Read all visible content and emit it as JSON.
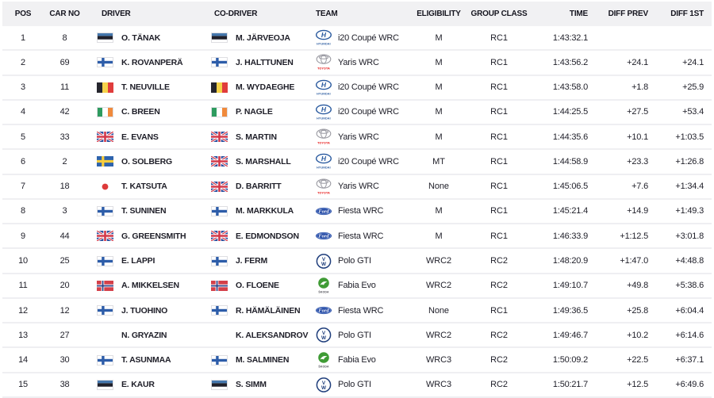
{
  "colors": {
    "header_bg": "#f1f1f3",
    "row_divider": "#efeff2",
    "text": "#1e1e28",
    "hyundai_blue": "#2a5a9f",
    "toyota_red": "#e50000",
    "ford_blue": "#254aa5",
    "vw_blue": "#1f3e7c",
    "skoda_green": "#3f9b35"
  },
  "table": {
    "columns": [
      {
        "key": "pos",
        "label": "POS"
      },
      {
        "key": "car_no",
        "label": "CAR NO"
      },
      {
        "key": "driver",
        "label": "DRIVER"
      },
      {
        "key": "codriver",
        "label": "CO-DRIVER"
      },
      {
        "key": "team",
        "label": "TEAM"
      },
      {
        "key": "eligibility",
        "label": "ELIGIBILITY"
      },
      {
        "key": "group_class",
        "label": "GROUP CLASS"
      },
      {
        "key": "time",
        "label": "TIME"
      },
      {
        "key": "diff_prev",
        "label": "DIFF PREV"
      },
      {
        "key": "diff_1st",
        "label": "DIFF 1ST"
      }
    ],
    "rows": [
      {
        "pos": "1",
        "car_no": "8",
        "driver": {
          "flag": "estonia",
          "name": "O. TÄNAK"
        },
        "codriver": {
          "flag": "estonia",
          "name": "M. JÄRVEOJA"
        },
        "team": {
          "logo": "hyundai",
          "car": "i20 Coupé WRC"
        },
        "eligibility": "M",
        "group_class": "RC1",
        "time": "1:43:32.1",
        "diff_prev": "",
        "diff_1st": ""
      },
      {
        "pos": "2",
        "car_no": "69",
        "driver": {
          "flag": "finland",
          "name": "K. ROVANPERÄ"
        },
        "codriver": {
          "flag": "finland",
          "name": "J. HALTTUNEN"
        },
        "team": {
          "logo": "toyota",
          "car": "Yaris WRC"
        },
        "eligibility": "M",
        "group_class": "RC1",
        "time": "1:43:56.2",
        "diff_prev": "+24.1",
        "diff_1st": "+24.1"
      },
      {
        "pos": "3",
        "car_no": "11",
        "driver": {
          "flag": "belgium",
          "name": "T. NEUVILLE"
        },
        "codriver": {
          "flag": "belgium",
          "name": "M. WYDAEGHE"
        },
        "team": {
          "logo": "hyundai",
          "car": "i20 Coupé WRC"
        },
        "eligibility": "M",
        "group_class": "RC1",
        "time": "1:43:58.0",
        "diff_prev": "+1.8",
        "diff_1st": "+25.9"
      },
      {
        "pos": "4",
        "car_no": "42",
        "driver": {
          "flag": "ireland",
          "name": "C. BREEN"
        },
        "codriver": {
          "flag": "ireland",
          "name": "P. NAGLE"
        },
        "team": {
          "logo": "hyundai",
          "car": "i20 Coupé WRC"
        },
        "eligibility": "M",
        "group_class": "RC1",
        "time": "1:44:25.5",
        "diff_prev": "+27.5",
        "diff_1st": "+53.4"
      },
      {
        "pos": "5",
        "car_no": "33",
        "driver": {
          "flag": "uk",
          "name": "E. EVANS"
        },
        "codriver": {
          "flag": "uk",
          "name": "S. MARTIN"
        },
        "team": {
          "logo": "toyota",
          "car": "Yaris WRC"
        },
        "eligibility": "M",
        "group_class": "RC1",
        "time": "1:44:35.6",
        "diff_prev": "+10.1",
        "diff_1st": "+1:03.5"
      },
      {
        "pos": "6",
        "car_no": "2",
        "driver": {
          "flag": "sweden",
          "name": "O. SOLBERG"
        },
        "codriver": {
          "flag": "uk",
          "name": "S. MARSHALL"
        },
        "team": {
          "logo": "hyundai",
          "car": "i20 Coupé WRC"
        },
        "eligibility": "MT",
        "group_class": "RC1",
        "time": "1:44:58.9",
        "diff_prev": "+23.3",
        "diff_1st": "+1:26.8"
      },
      {
        "pos": "7",
        "car_no": "18",
        "driver": {
          "flag": "japan",
          "name": "T. KATSUTA"
        },
        "codriver": {
          "flag": "uk",
          "name": "D. BARRITT"
        },
        "team": {
          "logo": "toyota",
          "car": "Yaris WRC"
        },
        "eligibility": "None",
        "group_class": "RC1",
        "time": "1:45:06.5",
        "diff_prev": "+7.6",
        "diff_1st": "+1:34.4"
      },
      {
        "pos": "8",
        "car_no": "3",
        "driver": {
          "flag": "finland",
          "name": "T. SUNINEN"
        },
        "codriver": {
          "flag": "finland",
          "name": "M. MARKKULA"
        },
        "team": {
          "logo": "ford",
          "car": "Fiesta WRC"
        },
        "eligibility": "M",
        "group_class": "RC1",
        "time": "1:45:21.4",
        "diff_prev": "+14.9",
        "diff_1st": "+1:49.3"
      },
      {
        "pos": "9",
        "car_no": "44",
        "driver": {
          "flag": "uk",
          "name": "G. GREENSMITH"
        },
        "codriver": {
          "flag": "uk",
          "name": "E. EDMONDSON"
        },
        "team": {
          "logo": "ford",
          "car": "Fiesta WRC"
        },
        "eligibility": "M",
        "group_class": "RC1",
        "time": "1:46:33.9",
        "diff_prev": "+1:12.5",
        "diff_1st": "+3:01.8"
      },
      {
        "pos": "10",
        "car_no": "25",
        "driver": {
          "flag": "finland",
          "name": "E. LAPPI"
        },
        "codriver": {
          "flag": "finland",
          "name": "J. FERM"
        },
        "team": {
          "logo": "vw",
          "car": "Polo GTI"
        },
        "eligibility": "WRC2",
        "group_class": "RC2",
        "time": "1:48:20.9",
        "diff_prev": "+1:47.0",
        "diff_1st": "+4:48.8"
      },
      {
        "pos": "11",
        "car_no": "20",
        "driver": {
          "flag": "norway",
          "name": "A. MIKKELSEN"
        },
        "codriver": {
          "flag": "norway",
          "name": "O. FLOENE"
        },
        "team": {
          "logo": "skoda",
          "car": "Fabia Evo"
        },
        "eligibility": "WRC2",
        "group_class": "RC2",
        "time": "1:49:10.7",
        "diff_prev": "+49.8",
        "diff_1st": "+5:38.6"
      },
      {
        "pos": "12",
        "car_no": "12",
        "driver": {
          "flag": "finland",
          "name": "J. TUOHINO"
        },
        "codriver": {
          "flag": "finland",
          "name": "R. HÄMÄLÄINEN"
        },
        "team": {
          "logo": "ford",
          "car": "Fiesta WRC"
        },
        "eligibility": "None",
        "group_class": "RC1",
        "time": "1:49:36.5",
        "diff_prev": "+25.8",
        "diff_1st": "+6:04.4"
      },
      {
        "pos": "13",
        "car_no": "27",
        "driver": {
          "flag": "none",
          "name": "N. GRYAZIN"
        },
        "codriver": {
          "flag": "none",
          "name": "K. ALEKSANDROV"
        },
        "team": {
          "logo": "vw",
          "car": "Polo GTI"
        },
        "eligibility": "WRC2",
        "group_class": "RC2",
        "time": "1:49:46.7",
        "diff_prev": "+10.2",
        "diff_1st": "+6:14.6"
      },
      {
        "pos": "14",
        "car_no": "30",
        "driver": {
          "flag": "finland",
          "name": "T. ASUNMAA"
        },
        "codriver": {
          "flag": "finland",
          "name": "M. SALMINEN"
        },
        "team": {
          "logo": "skoda",
          "car": "Fabia Evo"
        },
        "eligibility": "WRC3",
        "group_class": "RC2",
        "time": "1:50:09.2",
        "diff_prev": "+22.5",
        "diff_1st": "+6:37.1"
      },
      {
        "pos": "15",
        "car_no": "38",
        "driver": {
          "flag": "estonia",
          "name": "E. KAUR"
        },
        "codriver": {
          "flag": "estonia",
          "name": "S. SIMM"
        },
        "team": {
          "logo": "vw",
          "car": "Polo GTI"
        },
        "eligibility": "WRC3",
        "group_class": "RC2",
        "time": "1:50:21.7",
        "diff_prev": "+12.5",
        "diff_1st": "+6:49.6"
      }
    ]
  }
}
